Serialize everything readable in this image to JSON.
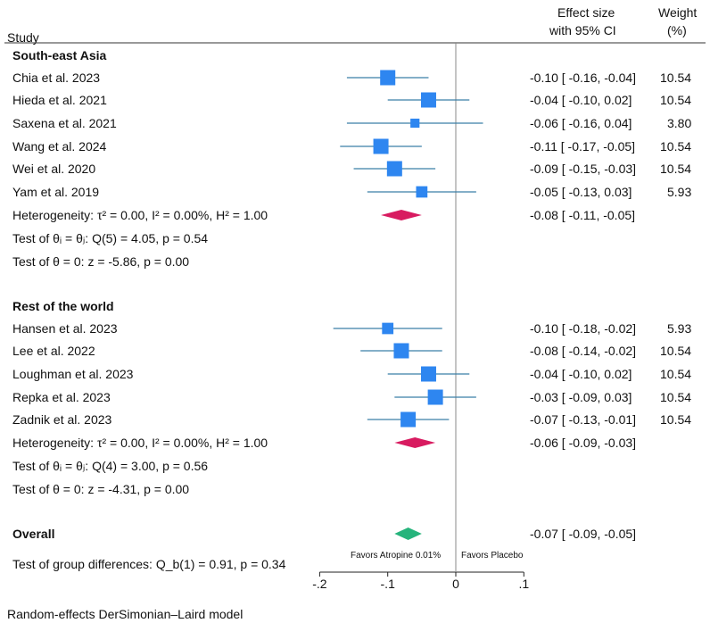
{
  "chart_data": {
    "type": "forest",
    "columns": {
      "study": "Study",
      "effect_line1": "Effect size",
      "effect_line2": "with 95% CI",
      "weight_line1": "Weight",
      "weight_line2": "(%)"
    },
    "xaxis": {
      "ticks": [
        -0.2,
        -0.1,
        0,
        0.1
      ],
      "tick_labels": [
        "-.2",
        "-.1",
        "0",
        ".1"
      ],
      "range": [
        -0.2,
        0.1
      ]
    },
    "favors_left": "Favors Atropine 0.01%",
    "favors_right": "Favors Placebo",
    "groups": [
      {
        "name": "South-east Asia",
        "studies": [
          {
            "name": "Chia et al. 2023",
            "es": -0.1,
            "lo": -0.16,
            "hi": -0.04,
            "ci_text": "-0.10 [ -0.16, -0.04]",
            "weight": "10.54"
          },
          {
            "name": "Hieda et al. 2021",
            "es": -0.04,
            "lo": -0.1,
            "hi": 0.02,
            "ci_text": "-0.04 [ -0.10,  0.02]",
            "weight": "10.54"
          },
          {
            "name": "Saxena et al. 2021",
            "es": -0.06,
            "lo": -0.16,
            "hi": 0.04,
            "ci_text": "-0.06 [ -0.16,  0.04]",
            "weight": "3.80"
          },
          {
            "name": "Wang et al. 2024",
            "es": -0.11,
            "lo": -0.17,
            "hi": -0.05,
            "ci_text": "-0.11 [ -0.17, -0.05]",
            "weight": "10.54"
          },
          {
            "name": "Wei et al. 2020",
            "es": -0.09,
            "lo": -0.15,
            "hi": -0.03,
            "ci_text": "-0.09 [ -0.15, -0.03]",
            "weight": "10.54"
          },
          {
            "name": "Yam et al. 2019",
            "es": -0.05,
            "lo": -0.13,
            "hi": 0.03,
            "ci_text": "-0.05 [ -0.13,  0.03]",
            "weight": "5.93"
          }
        ],
        "pooled": {
          "es": -0.08,
          "lo": -0.11,
          "hi": -0.05,
          "ci_text": "-0.08 [ -0.11, -0.05]"
        },
        "heterogeneity": "Heterogeneity: τ² = 0.00, I² = 0.00%, H² = 1.00",
        "test_equal": "Test of θᵢ = θⱼ: Q(5) = 4.05, p = 0.54",
        "test_zero": "Test of θ = 0: z = -5.86, p = 0.00"
      },
      {
        "name": "Rest of the world",
        "studies": [
          {
            "name": "Hansen et al. 2023",
            "es": -0.1,
            "lo": -0.18,
            "hi": -0.02,
            "ci_text": "-0.10 [ -0.18, -0.02]",
            "weight": "5.93"
          },
          {
            "name": "Lee et al. 2022",
            "es": -0.08,
            "lo": -0.14,
            "hi": -0.02,
            "ci_text": "-0.08 [ -0.14, -0.02]",
            "weight": "10.54"
          },
          {
            "name": "Loughman et al. 2023",
            "es": -0.04,
            "lo": -0.1,
            "hi": 0.02,
            "ci_text": "-0.04 [ -0.10,  0.02]",
            "weight": "10.54"
          },
          {
            "name": "Repka et al. 2023",
            "es": -0.03,
            "lo": -0.09,
            "hi": 0.03,
            "ci_text": "-0.03 [ -0.09,  0.03]",
            "weight": "10.54"
          },
          {
            "name": "Zadnik et al. 2023",
            "es": -0.07,
            "lo": -0.13,
            "hi": -0.01,
            "ci_text": "-0.07 [ -0.13, -0.01]",
            "weight": "10.54"
          }
        ],
        "pooled": {
          "es": -0.06,
          "lo": -0.09,
          "hi": -0.03,
          "ci_text": "-0.06 [ -0.09, -0.03]"
        },
        "heterogeneity": "Heterogeneity: τ² = 0.00, I² = 0.00%, H² = 1.00",
        "test_equal": "Test of θᵢ = θⱼ: Q(4) = 3.00, p = 0.56",
        "test_zero": "Test of θ = 0: z = -4.31, p = 0.00"
      }
    ],
    "overall": {
      "label": "Overall",
      "es": -0.07,
      "lo": -0.09,
      "hi": -0.05,
      "ci_text": "-0.07 [ -0.09, -0.05]"
    },
    "group_test": "Test of group differences: Q_b(1) = 0.91, p = 0.34",
    "footnote": "Random-effects DerSimonian–Laird model",
    "colors": {
      "square": "#2e86f0",
      "ci_line": "#3a7fa8",
      "subgroup_diamond": "#d81b60",
      "overall_diamond": "#26b47c",
      "null_line": "#888888",
      "axis": "#222222"
    }
  }
}
